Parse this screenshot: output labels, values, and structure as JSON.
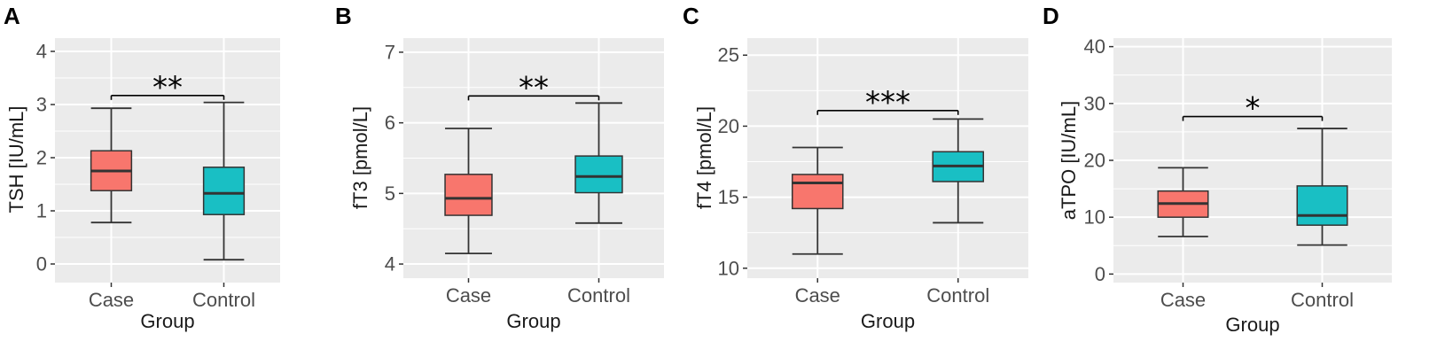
{
  "figure": {
    "colors": {
      "case": "#F8766D",
      "control": "#19BFC4",
      "panel_bg": "#EBEBEB",
      "grid": "#FFFFFF",
      "stroke": "#333333"
    }
  },
  "chart_data": [
    {
      "type": "boxplot",
      "panel_label": "A",
      "title": "",
      "xlabel": "Group",
      "ylabel": "TSH [IU/mL]",
      "categories": [
        "Case",
        "Control"
      ],
      "ylim": [
        -0.35,
        4.25
      ],
      "yticks": [
        0,
        1,
        2,
        3,
        4
      ],
      "ytick_labels": [
        "0",
        "1",
        "2",
        "3",
        "4"
      ],
      "boxes": [
        {
          "group": "Case",
          "min": 0.78,
          "q1": 1.38,
          "median": 1.75,
          "q3": 2.13,
          "max": 2.93
        },
        {
          "group": "Control",
          "min": 0.08,
          "q1": 0.93,
          "median": 1.33,
          "q3": 1.82,
          "max": 3.04
        }
      ],
      "significance": {
        "label": "**",
        "y": 3.17
      }
    },
    {
      "type": "boxplot",
      "panel_label": "B",
      "title": "",
      "xlabel": "Group",
      "ylabel": "fT3 [pmol/L]",
      "categories": [
        "Case",
        "Control"
      ],
      "ylim": [
        3.8,
        7.2
      ],
      "yticks": [
        4,
        5,
        6,
        7
      ],
      "ytick_labels": [
        "4",
        "5",
        "6",
        "7"
      ],
      "boxes": [
        {
          "group": "Case",
          "min": 4.15,
          "q1": 4.69,
          "median": 4.93,
          "q3": 5.27,
          "max": 5.92
        },
        {
          "group": "Control",
          "min": 4.58,
          "q1": 5.01,
          "median": 5.24,
          "q3": 5.53,
          "max": 6.28
        }
      ],
      "significance": {
        "label": "**",
        "y": 6.38
      }
    },
    {
      "type": "boxplot",
      "panel_label": "C",
      "title": "",
      "xlabel": "Group",
      "ylabel": "fT4 [pmol/L]",
      "categories": [
        "Case",
        "Control"
      ],
      "ylim": [
        9.3,
        26.2
      ],
      "yticks": [
        10,
        15,
        20,
        25
      ],
      "ytick_labels": [
        "10",
        "15",
        "20",
        "25"
      ],
      "boxes": [
        {
          "group": "Case",
          "min": 11.0,
          "q1": 14.2,
          "median": 16.0,
          "q3": 16.6,
          "max": 18.5
        },
        {
          "group": "Control",
          "min": 13.2,
          "q1": 16.1,
          "median": 17.2,
          "q3": 18.2,
          "max": 20.5
        }
      ],
      "significance": {
        "label": "***",
        "y": 21.1
      }
    },
    {
      "type": "boxplot",
      "panel_label": "D",
      "title": "",
      "xlabel": "Group",
      "ylabel": "aTPO [IU/mL]",
      "categories": [
        "Case",
        "Control"
      ],
      "ylim": [
        -1.5,
        41.5
      ],
      "yticks": [
        0,
        10,
        20,
        30,
        40
      ],
      "ytick_labels": [
        "0",
        "10",
        "20",
        "30",
        "40"
      ],
      "boxes": [
        {
          "group": "Case",
          "min": 6.6,
          "q1": 10.0,
          "median": 12.4,
          "q3": 14.6,
          "max": 18.7
        },
        {
          "group": "Control",
          "min": 5.1,
          "q1": 8.6,
          "median": 10.3,
          "q3": 15.5,
          "max": 25.6
        }
      ],
      "significance": {
        "label": "*",
        "y": 27.7
      }
    }
  ]
}
